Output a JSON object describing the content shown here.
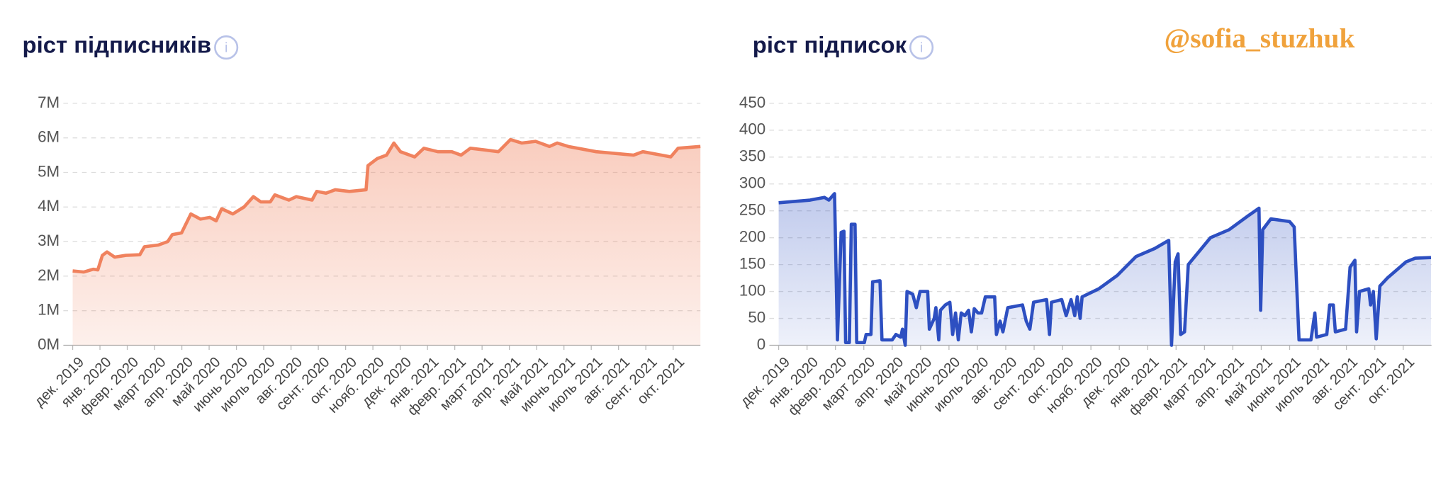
{
  "chart_data": [
    {
      "type": "line",
      "title": "ріст підписників",
      "icon": "i",
      "color": "#f0825e",
      "xlim": [
        0,
        23
      ],
      "ylim": [
        0,
        7000000
      ],
      "yticks": [
        {
          "value": 0,
          "label": "0M"
        },
        {
          "value": 1000000,
          "label": "1M"
        },
        {
          "value": 2000000,
          "label": "2M"
        },
        {
          "value": 3000000,
          "label": "3M"
        },
        {
          "value": 4000000,
          "label": "4M"
        },
        {
          "value": 5000000,
          "label": "5M"
        },
        {
          "value": 6000000,
          "label": "6M"
        },
        {
          "value": 7000000,
          "label": "7M"
        }
      ],
      "xticks": [
        {
          "value": 0,
          "label": "дек. 2019"
        },
        {
          "value": 1,
          "label": "янв. 2020"
        },
        {
          "value": 2,
          "label": "февр. 2020"
        },
        {
          "value": 3,
          "label": "март 2020"
        },
        {
          "value": 4,
          "label": "апр. 2020"
        },
        {
          "value": 5,
          "label": "май 2020"
        },
        {
          "value": 6,
          "label": "июнь 2020"
        },
        {
          "value": 7,
          "label": "июль 2020"
        },
        {
          "value": 8,
          "label": "авг. 2020"
        },
        {
          "value": 9,
          "label": "сент. 2020"
        },
        {
          "value": 10,
          "label": "окт. 2020"
        },
        {
          "value": 11,
          "label": "нояб. 2020"
        },
        {
          "value": 12,
          "label": "дек. 2020"
        },
        {
          "value": 13,
          "label": "янв. 2021"
        },
        {
          "value": 14,
          "label": "февр. 2021"
        },
        {
          "value": 15,
          "label": "март 2021"
        },
        {
          "value": 16,
          "label": "апр. 2021"
        },
        {
          "value": 17,
          "label": "май 2021"
        },
        {
          "value": 18,
          "label": "июнь 2021"
        },
        {
          "value": 19,
          "label": "июль 2021"
        },
        {
          "value": 20,
          "label": "авг. 2021"
        },
        {
          "value": 21,
          "label": "сент. 2021"
        },
        {
          "value": 22,
          "label": "окт. 2021"
        }
      ],
      "x": [
        0,
        0.41,
        0.75,
        0.92,
        1.09,
        1.26,
        1.54,
        1.95,
        2.46,
        2.63,
        3.14,
        3.48,
        3.65,
        3.99,
        4.33,
        4.68,
        5.02,
        5.26,
        5.46,
        5.87,
        6.28,
        6.62,
        6.89,
        7.24,
        7.41,
        7.92,
        8.19,
        8.77,
        8.94,
        9.28,
        9.62,
        10.14,
        10.75,
        10.82,
        11.16,
        11.5,
        11.77,
        12.01,
        12.53,
        12.87,
        13.38,
        13.89,
        14.23,
        14.57,
        15.09,
        15.6,
        16.04,
        16.45,
        16.96,
        17.47,
        17.75,
        18.16,
        19.18,
        20.55,
        20.89,
        21.91,
        22.18,
        23.0
      ],
      "values": [
        2150000,
        2120000,
        2200000,
        2180000,
        2600000,
        2700000,
        2550000,
        2600000,
        2620000,
        2850000,
        2900000,
        3000000,
        3200000,
        3250000,
        3800000,
        3650000,
        3700000,
        3600000,
        3950000,
        3800000,
        4000000,
        4300000,
        4150000,
        4150000,
        4350000,
        4200000,
        4300000,
        4200000,
        4450000,
        4400000,
        4500000,
        4450000,
        4500000,
        5200000,
        5400000,
        5500000,
        5850000,
        5600000,
        5450000,
        5700000,
        5600000,
        5600000,
        5500000,
        5700000,
        5650000,
        5600000,
        5950000,
        5850000,
        5900000,
        5750000,
        5850000,
        5750000,
        5600000,
        5500000,
        5600000,
        5450000,
        5700000,
        5750000
      ]
    },
    {
      "type": "line",
      "title": "ріст підписок",
      "icon": "i",
      "color": "#2d4fc1",
      "watermark": "@sofia_stuzhuk",
      "xlim": [
        0,
        23
      ],
      "ylim": [
        0,
        450
      ],
      "yticks": [
        0,
        50,
        100,
        150,
        200,
        250,
        300,
        350,
        400,
        450
      ],
      "xticks": [
        {
          "value": 0,
          "label": "дек. 2019"
        },
        {
          "value": 1,
          "label": "янв. 2020"
        },
        {
          "value": 2,
          "label": "февр. 2020"
        },
        {
          "value": 3,
          "label": "март 2020"
        },
        {
          "value": 4,
          "label": "апр. 2020"
        },
        {
          "value": 5,
          "label": "май 2020"
        },
        {
          "value": 6,
          "label": "июнь 2020"
        },
        {
          "value": 7,
          "label": "июль 2020"
        },
        {
          "value": 8,
          "label": "авг. 2020"
        },
        {
          "value": 9,
          "label": "сент. 2020"
        },
        {
          "value": 10,
          "label": "окт. 2020"
        },
        {
          "value": 11,
          "label": "нояб. 2020"
        },
        {
          "value": 12,
          "label": "дек. 2020"
        },
        {
          "value": 13,
          "label": "янв. 2021"
        },
        {
          "value": 14,
          "label": "февр. 2021"
        },
        {
          "value": 15,
          "label": "март 2021"
        },
        {
          "value": 16,
          "label": "апр. 2021"
        },
        {
          "value": 17,
          "label": "май 2021"
        },
        {
          "value": 18,
          "label": "июнь 2021"
        },
        {
          "value": 19,
          "label": "июль 2021"
        },
        {
          "value": 20,
          "label": "авг. 2021"
        },
        {
          "value": 21,
          "label": "сент. 2021"
        },
        {
          "value": 22,
          "label": "окт. 2021"
        }
      ],
      "x": [
        0,
        1.11,
        1.61,
        1.77,
        1.97,
        2.07,
        2.2,
        2.3,
        2.36,
        2.49,
        2.56,
        2.69,
        2.75,
        3.02,
        3.08,
        3.25,
        3.31,
        3.57,
        3.64,
        4.0,
        4.13,
        4.3,
        4.36,
        4.46,
        4.52,
        4.72,
        4.85,
        4.98,
        5.25,
        5.31,
        5.48,
        5.54,
        5.64,
        5.7,
        5.87,
        6.03,
        6.13,
        6.23,
        6.33,
        6.43,
        6.56,
        6.69,
        6.79,
        6.89,
        7.02,
        7.15,
        7.28,
        7.61,
        7.67,
        7.8,
        7.9,
        8.07,
        8.59,
        8.72,
        8.85,
        8.98,
        9.44,
        9.54,
        9.61,
        9.97,
        10.13,
        10.3,
        10.43,
        10.52,
        10.62,
        10.69,
        11.28,
        11.93,
        12.59,
        13.25,
        13.74,
        13.84,
        13.97,
        14.07,
        14.16,
        14.3,
        14.43,
        15.21,
        15.87,
        16.52,
        16.92,
        16.98,
        17.05,
        17.34,
        18.0,
        18.16,
        18.33,
        18.75,
        18.89,
        18.95,
        19.31,
        19.41,
        19.54,
        19.61,
        19.97,
        20.13,
        20.3,
        20.36,
        20.46,
        20.79,
        20.85,
        20.95,
        21.05,
        21.18,
        21.44,
        22.1,
        22.43,
        22.98
      ],
      "values": [
        265,
        270,
        275,
        270,
        282,
        10,
        210,
        212,
        5,
        5,
        225,
        225,
        5,
        5,
        20,
        20,
        118,
        120,
        10,
        10,
        20,
        15,
        30,
        0,
        100,
        95,
        70,
        100,
        100,
        30,
        50,
        70,
        10,
        65,
        75,
        80,
        20,
        60,
        10,
        60,
        55,
        65,
        25,
        68,
        60,
        60,
        90,
        90,
        20,
        45,
        25,
        70,
        75,
        45,
        30,
        80,
        85,
        20,
        80,
        85,
        55,
        85,
        55,
        90,
        50,
        90,
        105,
        130,
        165,
        180,
        195,
        0,
        155,
        170,
        20,
        25,
        150,
        200,
        215,
        240,
        255,
        65,
        215,
        235,
        230,
        220,
        10,
        10,
        60,
        15,
        20,
        75,
        75,
        25,
        30,
        145,
        158,
        25,
        100,
        105,
        75,
        100,
        12,
        110,
        125,
        155,
        162,
        163
      ]
    }
  ]
}
